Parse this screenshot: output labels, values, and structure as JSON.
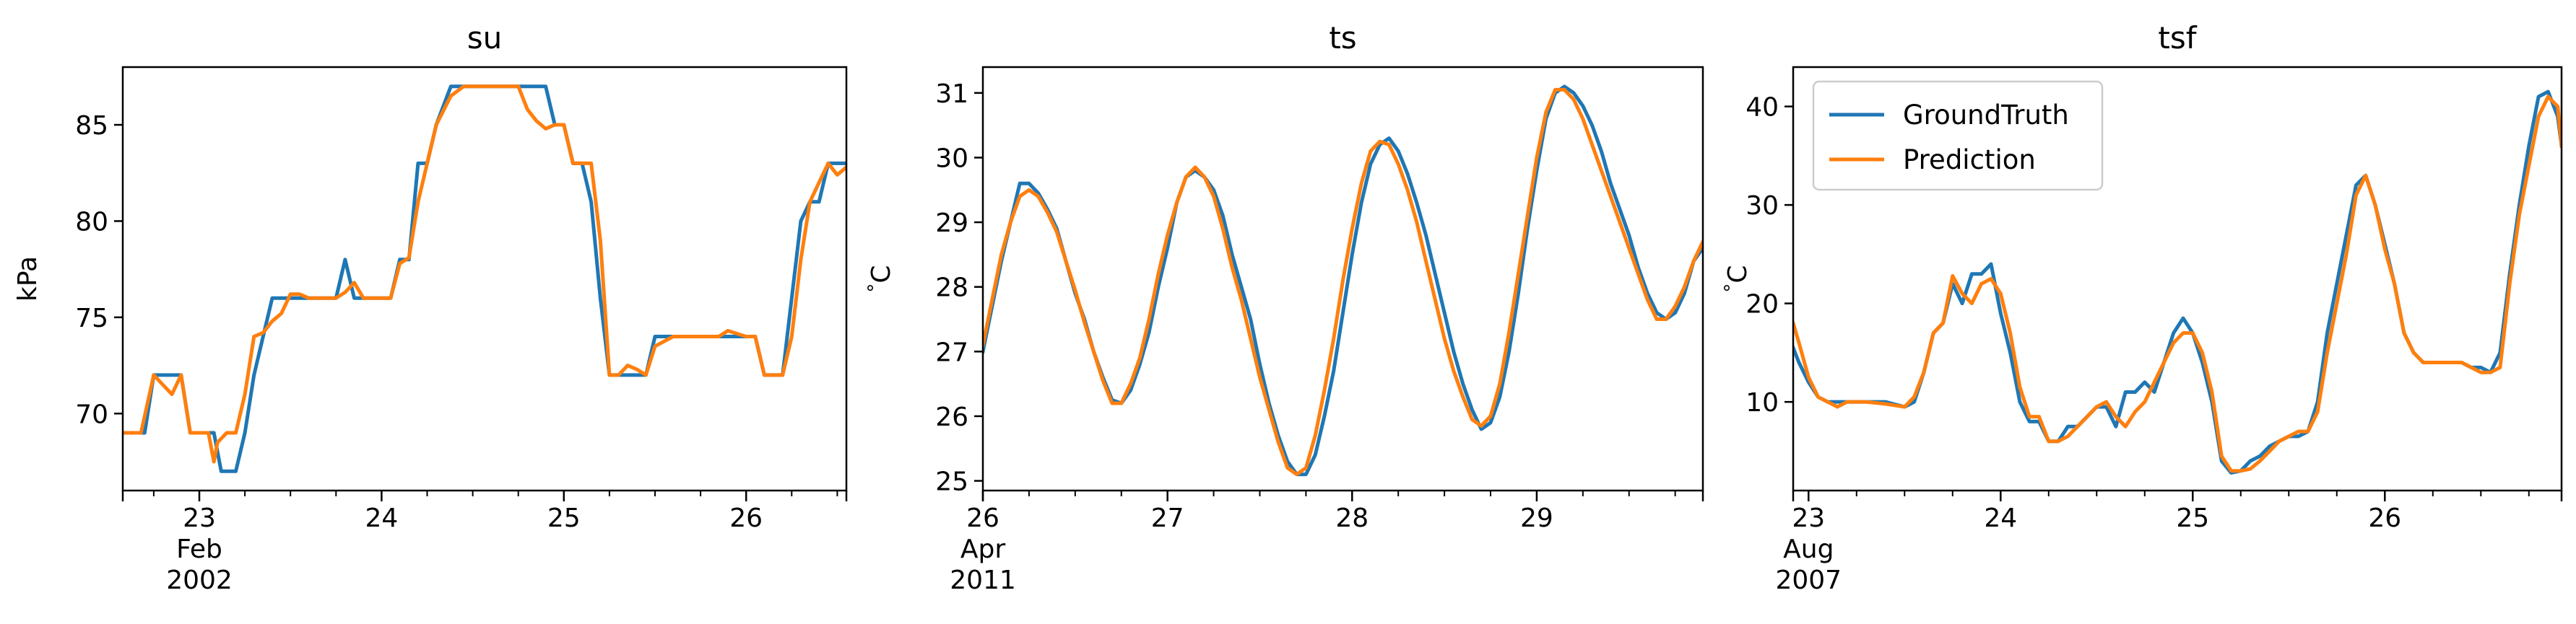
{
  "chart_data": [
    {
      "type": "line",
      "title": "su",
      "xlabel": "",
      "ylabel": "kPa",
      "xlim": [
        22.58,
        26.55
      ],
      "ylim": [
        66,
        88
      ],
      "xticks": [
        {
          "value": 23,
          "lines": [
            "23",
            "Feb",
            "2002"
          ]
        },
        {
          "value": 24,
          "lines": [
            "24"
          ]
        },
        {
          "value": 25,
          "lines": [
            "25"
          ]
        },
        {
          "value": 26,
          "lines": [
            "26"
          ]
        }
      ],
      "yticks": [
        70,
        75,
        80,
        85
      ],
      "series": [
        {
          "name": "GroundTruth",
          "color": "#1f77b4",
          "x": [
            22.58,
            22.7,
            22.75,
            22.85,
            22.9,
            22.95,
            23.05,
            23.08,
            23.12,
            23.15,
            23.2,
            23.25,
            23.3,
            23.35,
            23.4,
            23.5,
            23.55,
            23.6,
            23.65,
            23.7,
            23.75,
            23.8,
            23.85,
            23.9,
            23.95,
            24.05,
            24.1,
            24.15,
            24.2,
            24.25,
            24.3,
            24.38,
            24.45,
            24.55,
            24.65,
            24.75,
            24.8,
            24.85,
            24.9,
            24.95,
            25.0,
            25.05,
            25.1,
            25.15,
            25.2,
            25.25,
            25.3,
            25.4,
            25.45,
            25.5,
            25.6,
            25.7,
            25.8,
            25.9,
            26.0,
            26.05,
            26.1,
            26.15,
            26.2,
            26.25,
            26.3,
            26.35,
            26.4,
            26.45,
            26.5,
            26.55
          ],
          "y": [
            69,
            69,
            72,
            72,
            72,
            69,
            69,
            69,
            67,
            67,
            67,
            69,
            72,
            74,
            76,
            76,
            76,
            76,
            76,
            76,
            76,
            78,
            76,
            76,
            76,
            76,
            78,
            78,
            83,
            83,
            85,
            87,
            87,
            87,
            87,
            87,
            87,
            87,
            87,
            85,
            85,
            83,
            83,
            81,
            76,
            72,
            72,
            72,
            72,
            74,
            74,
            74,
            74,
            74,
            74,
            74,
            72,
            72,
            72,
            76,
            80,
            81,
            81,
            83,
            83,
            83
          ]
        },
        {
          "name": "Prediction",
          "color": "#ff7f0e",
          "x": [
            22.58,
            22.68,
            22.75,
            22.8,
            22.85,
            22.9,
            22.95,
            23.05,
            23.08,
            23.1,
            23.15,
            23.2,
            23.25,
            23.3,
            23.35,
            23.4,
            23.45,
            23.5,
            23.55,
            23.6,
            23.65,
            23.7,
            23.75,
            23.8,
            23.85,
            23.9,
            23.95,
            24.05,
            24.1,
            24.15,
            24.2,
            24.25,
            24.3,
            24.38,
            24.45,
            24.55,
            24.65,
            24.7,
            24.75,
            24.8,
            24.85,
            24.9,
            24.95,
            25.0,
            25.05,
            25.1,
            25.15,
            25.2,
            25.25,
            25.3,
            25.35,
            25.4,
            25.45,
            25.5,
            25.6,
            25.7,
            25.8,
            25.85,
            25.9,
            26.0,
            26.05,
            26.1,
            26.15,
            26.2,
            26.25,
            26.3,
            26.35,
            26.4,
            26.45,
            26.5,
            26.55
          ],
          "y": [
            69,
            69,
            72,
            71.5,
            71,
            72,
            69,
            69,
            67.5,
            68.5,
            69,
            69,
            71,
            74,
            74.2,
            74.8,
            75.2,
            76.2,
            76.2,
            76,
            76,
            76,
            76,
            76.3,
            76.8,
            76,
            76,
            76,
            77.8,
            78.1,
            81,
            83,
            85,
            86.5,
            87,
            87,
            87,
            87,
            87,
            85.8,
            85.2,
            84.8,
            85,
            85,
            83,
            83,
            83,
            79,
            72,
            72,
            72.5,
            72.3,
            72,
            73.5,
            74,
            74,
            74,
            74,
            74.3,
            74,
            74,
            72,
            72,
            72,
            74,
            78,
            81,
            82,
            83,
            82.4,
            82.8
          ]
        }
      ]
    },
    {
      "type": "line",
      "title": "ts",
      "xlabel": "",
      "ylabel": "$^\\circ$C",
      "xlim": [
        26,
        29.9
      ],
      "ylim": [
        24.85,
        31.4
      ],
      "xticks": [
        {
          "value": 26,
          "lines": [
            "26",
            "Apr",
            "2011"
          ]
        },
        {
          "value": 27,
          "lines": [
            "27"
          ]
        },
        {
          "value": 28,
          "lines": [
            "28"
          ]
        },
        {
          "value": 29,
          "lines": [
            "29"
          ]
        }
      ],
      "yticks": [
        25,
        26,
        27,
        28,
        29,
        30,
        31
      ],
      "series": [
        {
          "name": "GroundTruth",
          "color": "#1f77b4",
          "x": [
            26.0,
            26.05,
            26.1,
            26.15,
            26.2,
            26.25,
            26.3,
            26.35,
            26.4,
            26.45,
            26.5,
            26.55,
            26.6,
            26.65,
            26.7,
            26.75,
            26.8,
            26.85,
            26.9,
            26.95,
            27.0,
            27.05,
            27.1,
            27.15,
            27.2,
            27.25,
            27.3,
            27.35,
            27.4,
            27.45,
            27.5,
            27.55,
            27.6,
            27.65,
            27.7,
            27.75,
            27.8,
            27.85,
            27.9,
            27.95,
            28.0,
            28.05,
            28.1,
            28.15,
            28.2,
            28.25,
            28.3,
            28.35,
            28.4,
            28.45,
            28.5,
            28.55,
            28.6,
            28.65,
            28.7,
            28.75,
            28.8,
            28.85,
            28.9,
            28.95,
            29.0,
            29.05,
            29.1,
            29.15,
            29.2,
            29.25,
            29.3,
            29.35,
            29.4,
            29.45,
            29.5,
            29.55,
            29.6,
            29.65,
            29.7,
            29.75,
            29.8,
            29.85,
            29.9
          ],
          "y": [
            27.0,
            27.7,
            28.4,
            29.0,
            29.6,
            29.6,
            29.45,
            29.2,
            28.9,
            28.4,
            27.9,
            27.5,
            27.0,
            26.6,
            26.25,
            26.2,
            26.4,
            26.8,
            27.3,
            28.0,
            28.6,
            29.3,
            29.7,
            29.8,
            29.7,
            29.5,
            29.1,
            28.5,
            28.0,
            27.5,
            26.8,
            26.2,
            25.7,
            25.3,
            25.1,
            25.1,
            25.4,
            26.0,
            26.7,
            27.6,
            28.5,
            29.3,
            29.9,
            30.2,
            30.3,
            30.1,
            29.75,
            29.3,
            28.8,
            28.2,
            27.6,
            27.0,
            26.5,
            26.1,
            25.8,
            25.9,
            26.3,
            27.0,
            27.9,
            28.9,
            29.8,
            30.6,
            31.0,
            31.1,
            31.0,
            30.8,
            30.5,
            30.1,
            29.6,
            29.2,
            28.8,
            28.3,
            27.9,
            27.6,
            27.5,
            27.6,
            27.9,
            28.4,
            28.6
          ]
        },
        {
          "name": "Prediction",
          "color": "#ff7f0e",
          "x": [
            26.0,
            26.05,
            26.1,
            26.15,
            26.2,
            26.25,
            26.3,
            26.35,
            26.4,
            26.45,
            26.5,
            26.55,
            26.6,
            26.65,
            26.7,
            26.75,
            26.8,
            26.85,
            26.9,
            26.95,
            27.0,
            27.05,
            27.1,
            27.15,
            27.2,
            27.25,
            27.3,
            27.35,
            27.4,
            27.45,
            27.5,
            27.55,
            27.6,
            27.65,
            27.7,
            27.75,
            27.8,
            27.85,
            27.9,
            27.95,
            28.0,
            28.05,
            28.1,
            28.15,
            28.2,
            28.25,
            28.3,
            28.35,
            28.4,
            28.45,
            28.5,
            28.55,
            28.6,
            28.65,
            28.7,
            28.75,
            28.8,
            28.85,
            28.9,
            28.95,
            29.0,
            29.05,
            29.1,
            29.15,
            29.2,
            29.25,
            29.3,
            29.35,
            29.4,
            29.45,
            29.5,
            29.55,
            29.6,
            29.65,
            29.7,
            29.75,
            29.8,
            29.85,
            29.9
          ],
          "y": [
            27.1,
            27.8,
            28.5,
            29.0,
            29.4,
            29.5,
            29.4,
            29.15,
            28.85,
            28.4,
            27.95,
            27.45,
            27.0,
            26.55,
            26.2,
            26.2,
            26.5,
            26.9,
            27.5,
            28.2,
            28.8,
            29.3,
            29.7,
            29.85,
            29.7,
            29.4,
            28.9,
            28.3,
            27.8,
            27.2,
            26.6,
            26.1,
            25.6,
            25.2,
            25.1,
            25.2,
            25.7,
            26.4,
            27.2,
            28.1,
            28.9,
            29.6,
            30.1,
            30.25,
            30.2,
            29.9,
            29.5,
            29.0,
            28.4,
            27.8,
            27.2,
            26.7,
            26.3,
            25.95,
            25.85,
            26.0,
            26.5,
            27.3,
            28.2,
            29.1,
            30.0,
            30.7,
            31.05,
            31.05,
            30.9,
            30.6,
            30.2,
            29.8,
            29.4,
            29.0,
            28.6,
            28.2,
            27.8,
            27.5,
            27.5,
            27.7,
            28.0,
            28.4,
            28.7
          ]
        }
      ]
    },
    {
      "type": "line",
      "title": "tsf",
      "xlabel": "",
      "ylabel": "$^\\circ$C",
      "xlim": [
        22.92,
        26.92
      ],
      "ylim": [
        1,
        44
      ],
      "xticks": [
        {
          "value": 23,
          "lines": [
            "23",
            "Aug",
            "2007"
          ]
        },
        {
          "value": 24,
          "lines": [
            "24"
          ]
        },
        {
          "value": 25,
          "lines": [
            "25"
          ]
        },
        {
          "value": 26,
          "lines": [
            "26"
          ]
        }
      ],
      "yticks": [
        10,
        20,
        30,
        40
      ],
      "legend": {
        "position": "upper left",
        "entries": [
          "GroundTruth",
          "Prediction"
        ]
      },
      "series": [
        {
          "name": "GroundTruth",
          "color": "#1f77b4",
          "x": [
            22.92,
            22.95,
            23.0,
            23.05,
            23.1,
            23.15,
            23.2,
            23.3,
            23.4,
            23.5,
            23.55,
            23.6,
            23.65,
            23.7,
            23.75,
            23.8,
            23.85,
            23.9,
            23.95,
            24.0,
            24.05,
            24.1,
            24.15,
            24.2,
            24.25,
            24.3,
            24.35,
            24.4,
            24.45,
            24.5,
            24.55,
            24.6,
            24.65,
            24.7,
            24.75,
            24.8,
            24.85,
            24.9,
            24.95,
            25.0,
            25.05,
            25.1,
            25.15,
            25.2,
            25.25,
            25.3,
            25.35,
            25.4,
            25.45,
            25.5,
            25.55,
            25.6,
            25.65,
            25.7,
            25.75,
            25.8,
            25.85,
            25.9,
            25.95,
            26.0,
            26.05,
            26.1,
            26.15,
            26.2,
            26.25,
            26.3,
            26.35,
            26.4,
            26.45,
            26.5,
            26.55,
            26.6,
            26.65,
            26.7,
            26.75,
            26.8,
            26.85,
            26.9,
            26.92
          ],
          "y": [
            15.5,
            14,
            12,
            10.5,
            10,
            10,
            10,
            10,
            10,
            9.5,
            10,
            13,
            17,
            18,
            22,
            20,
            23,
            23,
            24,
            19,
            15,
            10,
            8,
            8,
            6,
            6,
            7.5,
            7.5,
            8.5,
            9.5,
            9.5,
            7.5,
            11,
            11,
            12,
            11,
            14,
            17,
            18.5,
            17,
            14,
            10,
            4,
            2.8,
            3,
            4,
            4.5,
            5.5,
            6,
            6.5,
            6.5,
            7,
            10,
            17,
            22,
            27,
            32,
            33,
            30,
            26,
            22,
            17,
            15,
            14,
            14,
            14,
            14,
            14,
            13.5,
            13.5,
            13,
            15,
            23,
            30,
            36,
            41,
            41.5,
            39,
            36
          ]
        },
        {
          "name": "Prediction",
          "color": "#ff7f0e",
          "x": [
            22.92,
            22.95,
            23.0,
            23.05,
            23.1,
            23.15,
            23.2,
            23.3,
            23.4,
            23.5,
            23.55,
            23.6,
            23.65,
            23.7,
            23.75,
            23.8,
            23.85,
            23.9,
            23.95,
            24.0,
            24.05,
            24.1,
            24.15,
            24.2,
            24.25,
            24.3,
            24.35,
            24.4,
            24.45,
            24.5,
            24.55,
            24.6,
            24.65,
            24.7,
            24.75,
            24.8,
            24.85,
            24.9,
            24.95,
            25.0,
            25.05,
            25.1,
            25.15,
            25.2,
            25.25,
            25.3,
            25.35,
            25.4,
            25.45,
            25.5,
            25.55,
            25.6,
            25.65,
            25.7,
            25.75,
            25.8,
            25.85,
            25.9,
            25.95,
            26.0,
            26.05,
            26.1,
            26.15,
            26.2,
            26.25,
            26.3,
            26.35,
            26.4,
            26.45,
            26.5,
            26.55,
            26.6,
            26.65,
            26.7,
            26.75,
            26.8,
            26.85,
            26.9,
            26.92
          ],
          "y": [
            18,
            16,
            12.5,
            10.5,
            10,
            9.5,
            10,
            10,
            9.8,
            9.5,
            10.5,
            13,
            17,
            18,
            22.8,
            21,
            20,
            22,
            22.5,
            21,
            17,
            11.5,
            8.5,
            8.5,
            6,
            6,
            6.5,
            7.5,
            8.5,
            9.5,
            10,
            8.5,
            7.5,
            9,
            10,
            12,
            14,
            16,
            17,
            17,
            15,
            11,
            4.5,
            3,
            3,
            3.2,
            4,
            5,
            6,
            6.5,
            7,
            7,
            9,
            15,
            20,
            25,
            31,
            33,
            30,
            25.5,
            22,
            17,
            15,
            14,
            14,
            14,
            14,
            14,
            13.5,
            13,
            13,
            13.5,
            22,
            29,
            34,
            39,
            41,
            40,
            36
          ]
        }
      ]
    }
  ]
}
